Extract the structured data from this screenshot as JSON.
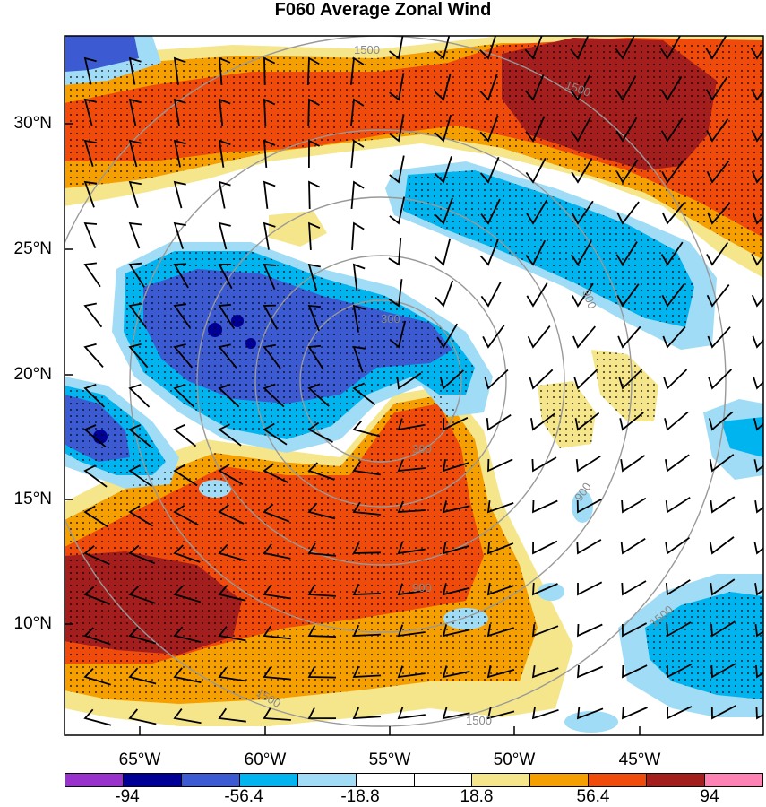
{
  "title": "F060 Average Zonal Wind",
  "lat_labels": [
    "30°N",
    "25°N",
    "20°N",
    "15°N",
    "10°N"
  ],
  "lon_labels": [
    "65°W",
    "60°W",
    "55°W",
    "50°W",
    "45°W"
  ],
  "contour_labels": [
    "1500",
    "1500",
    "900",
    "300",
    "300",
    "900",
    "900",
    "1500",
    "1500",
    "1500"
  ],
  "colorbar": {
    "labels": [
      "-94",
      "-56.4",
      "-18.8",
      "18.8",
      "56.4",
      "94"
    ],
    "colors": [
      "#9932cc",
      "#000096",
      "#3c5ad2",
      "#00b4f0",
      "#a0dcf5",
      "#ffffff",
      "#ffffff",
      "#f5e68c",
      "#f5a000",
      "#f04b0a",
      "#a51e1e",
      "#ff82b4"
    ]
  },
  "colors": {
    "strong_positive": "#a51e1e",
    "positive": "#f04b0a",
    "weak_positive": "#f5a000",
    "faint_positive": "#f5e68c",
    "faint_negative": "#a0dcf5",
    "weak_negative": "#00b4f0",
    "negative": "#3c5ad2",
    "strong_negative": "#000096",
    "range_ring": "#999999"
  }
}
